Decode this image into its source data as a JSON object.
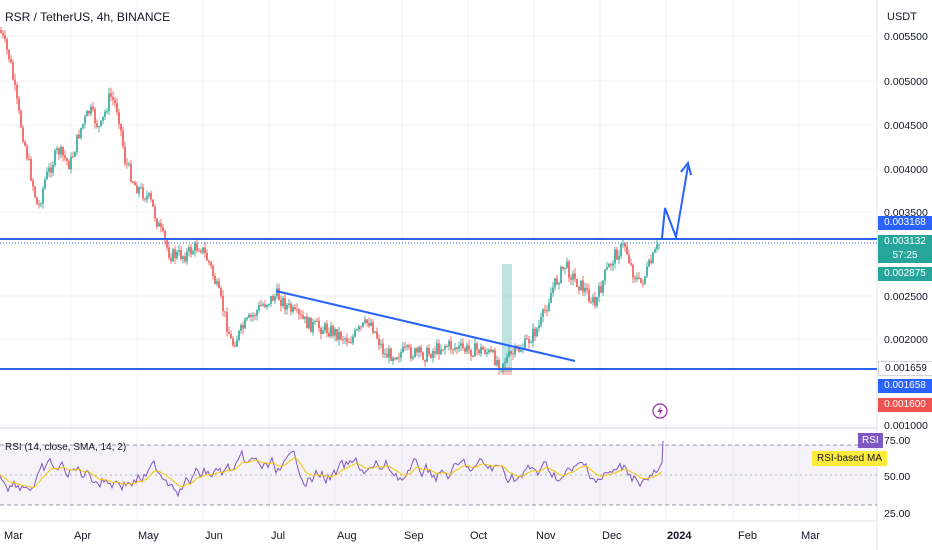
{
  "header": {
    "symbol_line": "RSR / TetherUS, 4h, BINANCE",
    "currency": "USDT"
  },
  "price_axis": {
    "ticks": [
      "0.005500",
      "0.005000",
      "0.004500",
      "0.004000",
      "0.003500",
      "0.002500",
      "0.002000",
      "0.001000"
    ]
  },
  "price_badges": {
    "upper_line": "0.003168",
    "last_price": "0.003132",
    "countdown": "57:25",
    "level_2875": "0.002875",
    "level_1659": "0.001659",
    "lower_line": "0.001658",
    "level_1600": "0.001600"
  },
  "rsi": {
    "label": "RSI (14, close, SMA, 14, 2)",
    "tag": "RSI",
    "ma_tag": "RSI-based MA",
    "ticks": [
      "75.00",
      "50.00",
      "25.00"
    ]
  },
  "time_axis": {
    "labels": [
      "Mar",
      "Apr",
      "May",
      "Jun",
      "Jul",
      "Aug",
      "Sep",
      "Oct",
      "Nov",
      "Dec",
      "2024",
      "Feb",
      "Mar"
    ]
  },
  "colors": {
    "up": "#26a69a",
    "down": "#ef5350",
    "drawing_blue": "#2962ff",
    "rsi_line": "#7e57c2",
    "rsi_ma": "#f7c600"
  },
  "icons": [
    "lightning-icon"
  ]
}
